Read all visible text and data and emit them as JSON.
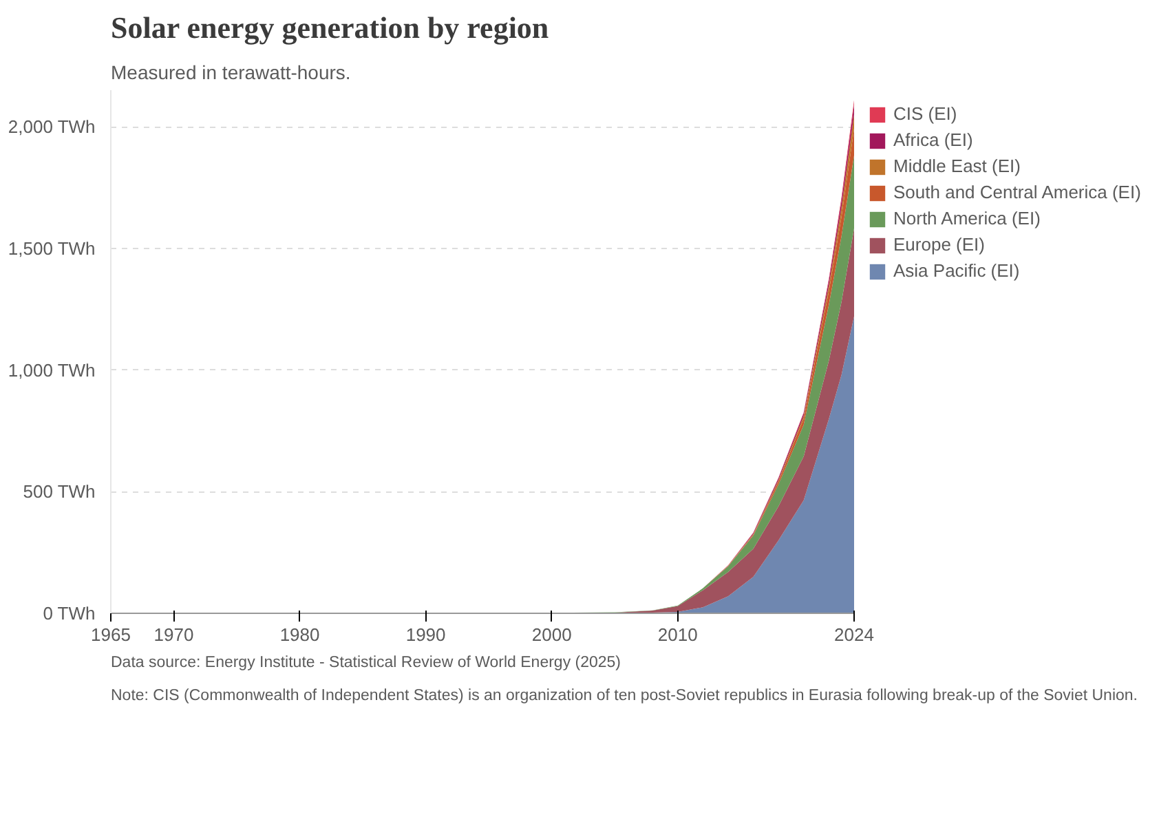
{
  "chart_data": {
    "type": "area",
    "stacked": true,
    "title": "Solar energy generation by region",
    "subtitle": "Measured in terawatt-hours.",
    "x": [
      1965,
      1990,
      2000,
      2005,
      2008,
      2010,
      2012,
      2014,
      2016,
      2018,
      2020,
      2022,
      2023,
      2024
    ],
    "xlim": [
      1965,
      2024
    ],
    "xticks": [
      1965,
      1970,
      1980,
      1990,
      2000,
      2010,
      2024
    ],
    "ylim": [
      0,
      2150
    ],
    "yticks": [
      {
        "value": 0,
        "label": "0 TWh"
      },
      {
        "value": 500,
        "label": "500 TWh"
      },
      {
        "value": 1000,
        "label": "1,000 TWh"
      },
      {
        "value": 1500,
        "label": "1,500 TWh"
      },
      {
        "value": 2000,
        "label": "2,000 TWh"
      }
    ],
    "grid": "y",
    "legend": "right",
    "series": [
      {
        "name": "Asia Pacific (EI)",
        "color": "#6f87b0",
        "values": [
          0,
          0,
          1,
          1,
          3,
          6,
          25,
          70,
          150,
          300,
          465,
          799,
          980,
          1221
        ]
      },
      {
        "name": "Europe (EI)",
        "color": "#a0525e",
        "values": [
          0,
          0,
          0,
          2,
          8,
          24,
          70,
          100,
          115,
          140,
          180,
          240,
          300,
          361
        ]
      },
      {
        "name": "North America (EI)",
        "color": "#6a9a5a",
        "values": [
          0,
          0,
          1,
          1,
          1,
          2,
          8,
          23,
          55,
          90,
          130,
          230,
          270,
          300
        ]
      },
      {
        "name": "South and Central America (EI)",
        "color": "#c8582c",
        "values": [
          0,
          0,
          0,
          0,
          0,
          0,
          0,
          1,
          4,
          12,
          25,
          55,
          80,
          110
        ]
      },
      {
        "name": "Middle East (EI)",
        "color": "#c0742b",
        "values": [
          0,
          0,
          0,
          0,
          0,
          0,
          0,
          1,
          3,
          6,
          12,
          25,
          40,
          60
        ]
      },
      {
        "name": "Africa (EI)",
        "color": "#a2185b",
        "values": [
          0,
          0,
          0,
          0,
          0,
          0,
          0,
          1,
          4,
          8,
          11,
          20,
          28,
          40
        ]
      },
      {
        "name": "CIS (EI)",
        "color": "#e03a54",
        "values": [
          0,
          0,
          0,
          0,
          0,
          0,
          0,
          1,
          1,
          2,
          3,
          7,
          12,
          17
        ]
      }
    ],
    "annotations": [
      "Data source: Energy Institute - Statistical Review of World Energy (2025)",
      "Note: CIS (Commonwealth of Independent States) is an organization of ten post-Soviet republics in Eurasia following break-up of the Soviet Union."
    ]
  }
}
